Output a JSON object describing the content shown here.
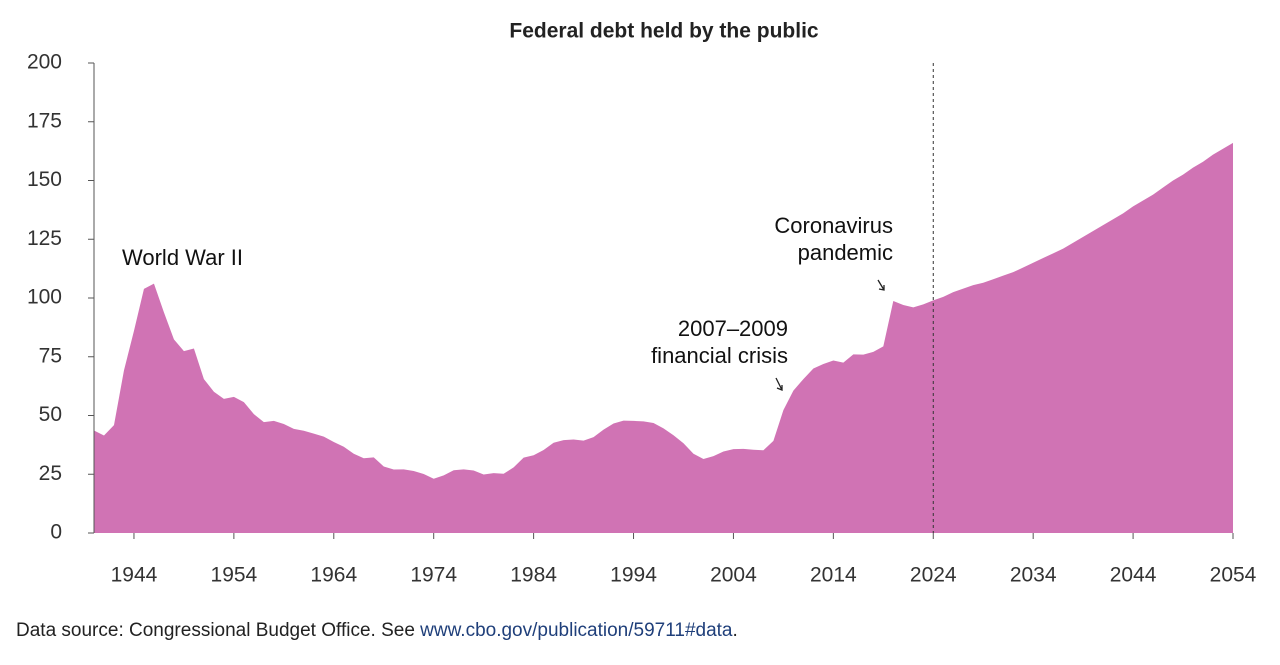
{
  "chart_data": {
    "type": "area",
    "title": "Federal debt held by the public",
    "x": [
      1940,
      1941,
      1942,
      1943,
      1944,
      1945,
      1946,
      1947,
      1948,
      1949,
      1950,
      1951,
      1952,
      1953,
      1954,
      1955,
      1956,
      1957,
      1958,
      1959,
      1960,
      1961,
      1962,
      1963,
      1964,
      1965,
      1966,
      1967,
      1968,
      1969,
      1970,
      1971,
      1972,
      1973,
      1974,
      1975,
      1976,
      1977,
      1978,
      1979,
      1980,
      1981,
      1982,
      1983,
      1984,
      1985,
      1986,
      1987,
      1988,
      1989,
      1990,
      1991,
      1992,
      1993,
      1994,
      1995,
      1996,
      1997,
      1998,
      1999,
      2000,
      2001,
      2002,
      2003,
      2004,
      2005,
      2006,
      2007,
      2008,
      2009,
      2010,
      2011,
      2012,
      2013,
      2014,
      2015,
      2016,
      2017,
      2018,
      2019,
      2020,
      2021,
      2022,
      2023,
      2024,
      2025,
      2026,
      2027,
      2028,
      2029,
      2030,
      2031,
      2032,
      2033,
      2034,
      2035,
      2036,
      2037,
      2038,
      2039,
      2040,
      2041,
      2042,
      2043,
      2044,
      2045,
      2046,
      2047,
      2048,
      2049,
      2050,
      2051,
      2052,
      2053,
      2054
    ],
    "series": [
      {
        "color": "#d073b4",
        "values": [
          43.6,
          41.5,
          45.9,
          69.2,
          86.0,
          103.9,
          106.1,
          93.9,
          82.4,
          77.4,
          78.5,
          65.5,
          60.1,
          57.1,
          57.9,
          55.7,
          50.6,
          47.2,
          47.7,
          46.4,
          44.3,
          43.5,
          42.3,
          41.0,
          38.7,
          36.7,
          33.7,
          31.8,
          32.2,
          28.3,
          27.0,
          27.1,
          26.4,
          25.1,
          23.1,
          24.5,
          26.7,
          27.1,
          26.6,
          24.9,
          25.5,
          25.2,
          27.9,
          32.1,
          33.1,
          35.3,
          38.4,
          39.5,
          39.8,
          39.3,
          40.8,
          44.0,
          46.6,
          47.8,
          47.7,
          47.5,
          46.8,
          44.5,
          41.6,
          38.2,
          33.7,
          31.5,
          32.7,
          34.7,
          35.7,
          35.8,
          35.4,
          35.2,
          39.2,
          52.3,
          60.6,
          65.5,
          70.0,
          71.9,
          73.4,
          72.5,
          76.0,
          75.9,
          77.1,
          79.4,
          98.7,
          97.0,
          96.0,
          97.3,
          99.0,
          100.5,
          102.5,
          104.0,
          105.5,
          106.5,
          108.0,
          109.5,
          111.0,
          113.0,
          115.0,
          117.0,
          119.0,
          121.0,
          123.5,
          126.0,
          128.5,
          131.0,
          133.5,
          136.0,
          139.0,
          141.5,
          144.0,
          147.0,
          150.0,
          152.5,
          155.5,
          158.0,
          161.0,
          163.5,
          166.0
        ]
      }
    ],
    "xlim": [
      1940,
      2054
    ],
    "xticks": [
      1944,
      1954,
      1964,
      1974,
      1984,
      1994,
      2004,
      2014,
      2024,
      2034,
      2044,
      2054
    ],
    "ylim": [
      0,
      200
    ],
    "yticks": [
      0,
      25,
      50,
      75,
      100,
      125,
      150,
      175,
      200
    ],
    "projection_start": 2024,
    "annotations": [
      {
        "lines": [
          "World War II"
        ]
      },
      {
        "lines": [
          "2007–2009",
          "financial crisis"
        ]
      },
      {
        "lines": [
          "Coronavirus",
          "pandemic"
        ]
      }
    ],
    "source": {
      "text": "Data source: Congressional Budget Office. See ",
      "link": "www.cbo.gov/publication/59711#data",
      "end": "."
    }
  }
}
